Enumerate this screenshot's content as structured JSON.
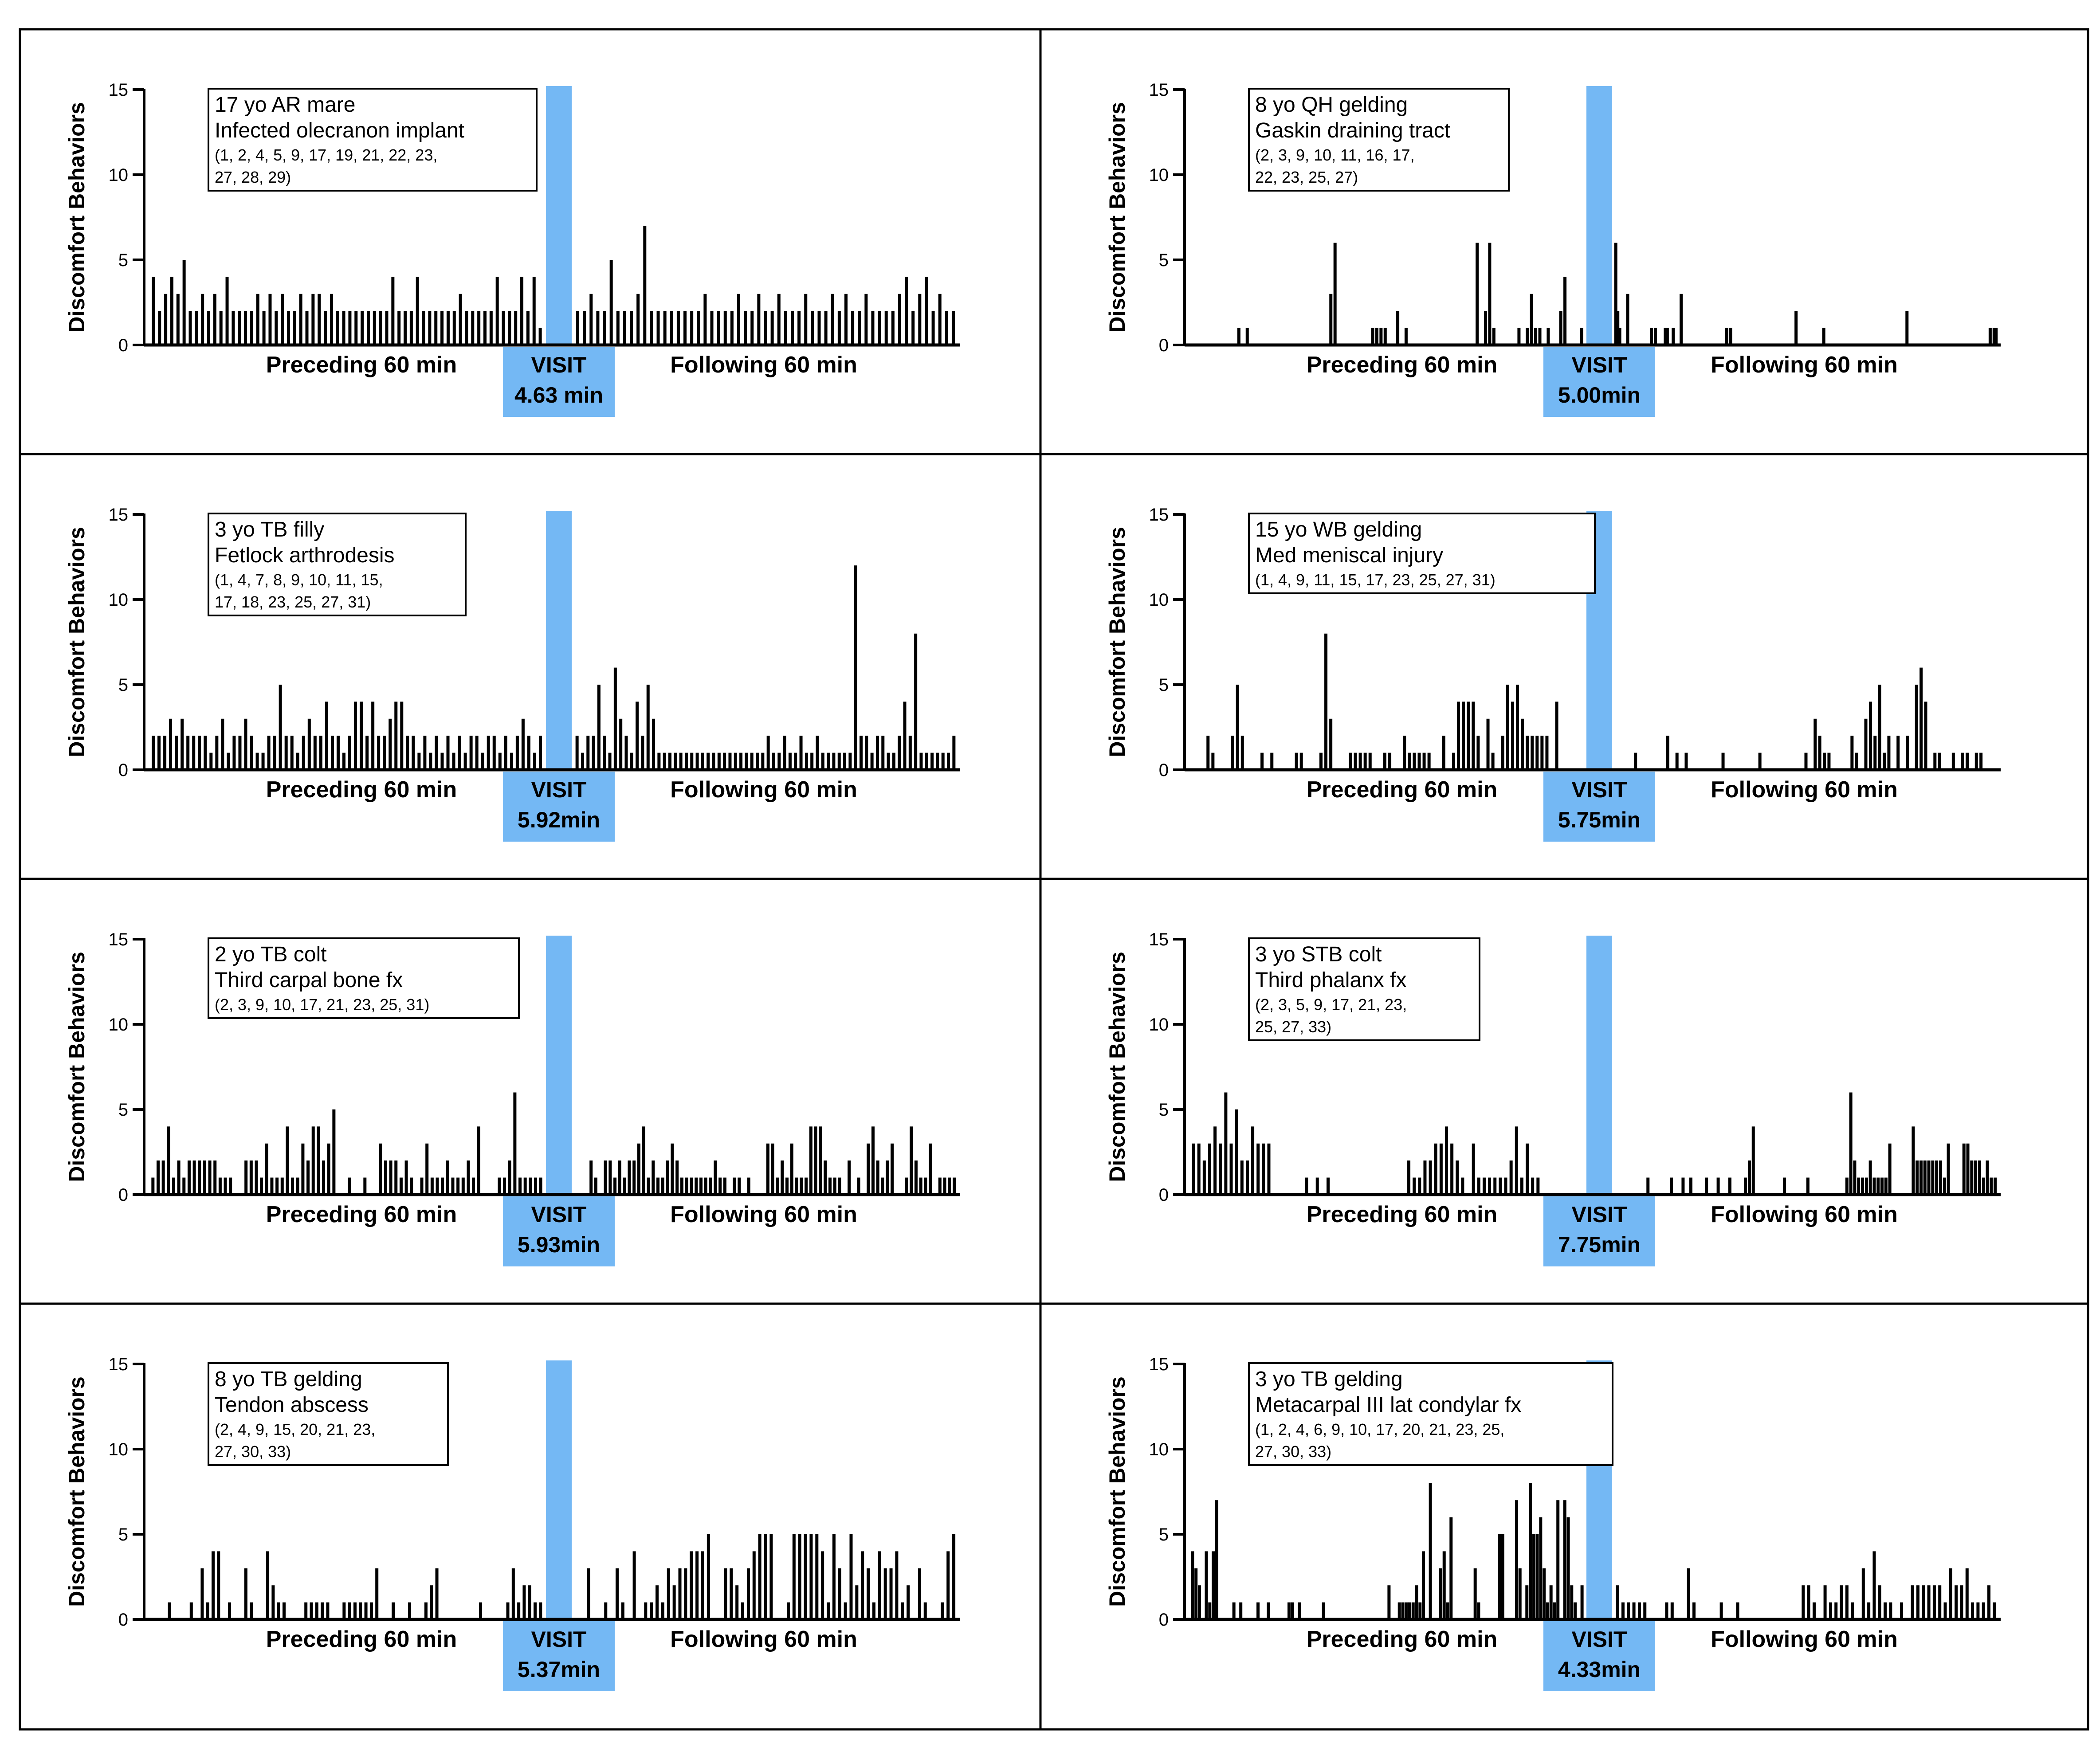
{
  "figure": {
    "y_axis_label": "Discomfort Behaviors",
    "pre_label": "Preceding 60 min",
    "post_label": "Following 60 min",
    "visit_label": "VISIT",
    "accent_color": "#74b8f4",
    "bar_color": "#000000"
  },
  "chart_data": [
    {
      "type": "bar",
      "title": "17 yo AR mare",
      "subtitle": "Infected olecranon implant",
      "codes": [
        "(1, 2, 4, 5, 9, 17, 19, 21, 22, 23,",
        "27, 28, 29)"
      ],
      "visit_duration": "4.63 min",
      "ylabel": "Discomfort Behaviors",
      "ylim": [
        0,
        15
      ],
      "yticks": [
        0,
        5,
        10,
        15
      ],
      "pre_values": [
        4,
        2,
        3,
        4,
        3,
        5,
        2,
        2,
        3,
        2,
        3,
        2,
        4,
        2,
        2,
        2,
        2,
        3,
        2,
        3,
        2,
        3,
        2,
        2,
        3,
        2,
        3,
        3,
        2,
        3,
        2,
        2,
        2,
        2,
        2,
        2,
        2,
        2,
        2,
        4,
        2,
        2,
        2,
        4,
        2,
        2,
        2,
        2,
        2,
        2,
        3,
        2,
        2,
        2,
        2,
        2,
        4,
        2,
        2,
        2,
        4,
        2,
        4,
        1
      ],
      "post_values": [
        2,
        2,
        3,
        2,
        2,
        5,
        2,
        2,
        2,
        3,
        7,
        2,
        2,
        2,
        2,
        2,
        2,
        2,
        2,
        3,
        2,
        2,
        2,
        2,
        3,
        2,
        2,
        3,
        2,
        2,
        3,
        2,
        2,
        2,
        3,
        2,
        2,
        2,
        3,
        2,
        3,
        2,
        2,
        3,
        2,
        2,
        2,
        2,
        3,
        4,
        2,
        3,
        4,
        2,
        3,
        2,
        2
      ]
    },
    {
      "type": "bar",
      "title": "8 yo QH gelding",
      "subtitle": "Gaskin draining tract",
      "codes": [
        "(2, 3, 9, 10, 11, 16, 17,",
        "22, 23, 25, 27)"
      ],
      "visit_duration": "5.00min",
      "ylabel": "Discomfort Behaviors",
      "ylim": [
        0,
        15
      ],
      "yticks": [
        0,
        5,
        10,
        15
      ],
      "pre_values": [
        0,
        0,
        0,
        0,
        0,
        0,
        0,
        0,
        0,
        0,
        0,
        1,
        0,
        1,
        0,
        0,
        0,
        0,
        0,
        0,
        0,
        0,
        0,
        0,
        0,
        0,
        0,
        0,
        0,
        0,
        0,
        0,
        0,
        3,
        6,
        0,
        0,
        0,
        0,
        0,
        0,
        0,
        0,
        1,
        1,
        1,
        1,
        0,
        0,
        2,
        0,
        1,
        0,
        0,
        0,
        0,
        0,
        0,
        0,
        0,
        0,
        0,
        0,
        0,
        0,
        0,
        0,
        0,
        6,
        0,
        2,
        6,
        1,
        0,
        0,
        0,
        0,
        0,
        1,
        0,
        1,
        3,
        1,
        1,
        0,
        1,
        0,
        0,
        2,
        4,
        0,
        0,
        0,
        1
      ],
      "post_values": [
        6,
        2,
        1,
        0,
        0,
        0,
        3,
        0,
        0,
        0,
        0,
        0,
        0,
        0,
        0,
        0,
        0,
        0,
        1,
        0,
        1,
        0,
        0,
        0,
        0,
        1,
        1,
        0,
        0,
        1,
        0,
        0,
        0,
        3,
        0,
        0,
        0,
        0,
        0,
        0,
        0,
        0,
        0,
        0,
        0,
        0,
        0,
        0,
        0,
        0,
        0,
        0,
        0,
        0,
        0,
        0,
        1,
        0,
        1,
        0,
        0,
        0,
        0,
        0,
        0,
        0,
        0,
        0,
        0,
        0,
        0,
        0,
        0,
        0,
        0,
        0,
        0,
        0,
        0,
        0,
        0,
        0,
        0,
        0,
        0,
        0,
        0,
        0,
        0,
        0,
        0,
        2,
        0,
        0,
        0,
        0,
        0,
        0,
        0,
        0,
        0,
        0,
        0,
        0,
        0,
        1,
        0,
        0,
        0,
        0,
        0,
        0,
        0,
        0,
        0,
        0,
        0,
        0,
        0,
        0,
        0,
        0,
        0,
        0,
        0,
        0,
        0,
        0,
        0,
        0,
        0,
        0,
        0,
        0,
        0,
        0,
        0,
        0,
        0,
        0,
        0,
        0,
        0,
        0,
        0,
        0,
        0,
        2,
        0,
        0,
        0,
        0,
        0,
        0,
        0,
        0,
        0,
        0,
        0,
        0,
        0,
        0,
        0,
        0,
        0,
        0,
        0,
        0,
        0,
        0,
        0,
        0,
        0,
        0,
        0,
        0,
        0,
        0,
        0,
        0,
        0,
        0,
        0,
        0,
        0,
        0,
        0,
        0,
        0,
        1,
        0,
        1,
        1
      ]
    },
    {
      "type": "bar",
      "title": "3 yo TB filly",
      "subtitle": "Fetlock arthrodesis",
      "codes": [
        "(1, 4, 7, 8, 9, 10, 11, 15,",
        "17, 18, 23, 25, 27, 31)"
      ],
      "visit_duration": "5.92min",
      "ylabel": "Discomfort Behaviors",
      "ylim": [
        0,
        15
      ],
      "yticks": [
        0,
        5,
        10,
        15
      ],
      "pre_values": [
        2,
        2,
        2,
        3,
        2,
        3,
        2,
        2,
        2,
        2,
        1,
        2,
        3,
        1,
        2,
        2,
        3,
        2,
        1,
        1,
        2,
        2,
        5,
        2,
        2,
        1,
        2,
        3,
        2,
        2,
        4,
        2,
        2,
        1,
        2,
        4,
        4,
        2,
        4,
        2,
        2,
        3,
        4,
        4,
        2,
        2,
        1,
        2,
        1,
        2,
        1,
        2,
        1,
        2,
        1,
        2,
        2,
        1,
        2,
        2,
        1,
        2,
        1,
        2,
        3,
        2,
        1,
        2
      ],
      "post_values": [
        2,
        1,
        2,
        2,
        5,
        2,
        1,
        6,
        3,
        2,
        1,
        4,
        2,
        5,
        3,
        1,
        1,
        1,
        1,
        1,
        1,
        1,
        1,
        1,
        1,
        1,
        1,
        1,
        1,
        1,
        1,
        1,
        1,
        1,
        1,
        2,
        1,
        1,
        2,
        1,
        1,
        2,
        1,
        1,
        2,
        1,
        1,
        1,
        1,
        1,
        1,
        12,
        2,
        2,
        1,
        2,
        2,
        1,
        1,
        2,
        4,
        2,
        8,
        1,
        1,
        1,
        1,
        1,
        1,
        2
      ]
    },
    {
      "type": "bar",
      "title": "15 yo WB gelding",
      "subtitle": "Med meniscal injury",
      "codes": [
        "(1, 4, 9, 11, 15, 17, 23, 25, 27, 31)"
      ],
      "visit_duration": "5.75min",
      "ylabel": "Discomfort Behaviors",
      "ylim": [
        0,
        15
      ],
      "yticks": [
        0,
        5,
        10,
        15
      ],
      "pre_values": [
        0,
        0,
        0,
        2,
        1,
        0,
        0,
        0,
        2,
        5,
        2,
        0,
        0,
        0,
        1,
        0,
        1,
        0,
        0,
        0,
        0,
        1,
        1,
        0,
        0,
        0,
        1,
        8,
        3,
        0,
        0,
        0,
        1,
        1,
        1,
        1,
        1,
        0,
        0,
        1,
        1,
        0,
        0,
        2,
        1,
        1,
        1,
        1,
        1,
        0,
        0,
        2,
        0,
        1,
        4,
        4,
        4,
        4,
        2,
        0,
        3,
        1,
        0,
        2,
        5,
        4,
        5,
        3,
        2,
        2,
        2,
        2,
        2,
        0,
        4,
        0,
        0,
        0,
        0,
        0
      ],
      "post_values": [
        0,
        0,
        0,
        0,
        1,
        0,
        0,
        0,
        0,
        0,
        0,
        2,
        0,
        1,
        0,
        1,
        0,
        0,
        0,
        0,
        0,
        0,
        0,
        1,
        0,
        0,
        0,
        0,
        0,
        0,
        0,
        1,
        0,
        0,
        0,
        0,
        0,
        0,
        0,
        0,
        0,
        1,
        0,
        3,
        2,
        1,
        1,
        0,
        0,
        0,
        0,
        2,
        1,
        0,
        3,
        4,
        2,
        5,
        1,
        2,
        0,
        2,
        0,
        2,
        0,
        5,
        6,
        4,
        0,
        1,
        1,
        0,
        0,
        1,
        0,
        1,
        1,
        0,
        1,
        1,
        0,
        0,
        0
      ]
    },
    {
      "type": "bar",
      "title": "2 yo TB colt",
      "subtitle": "Third carpal bone fx",
      "codes": [
        "(2, 3, 9, 10, 17, 21, 23, 25, 31)"
      ],
      "visit_duration": "5.93min",
      "ylabel": "Discomfort Behaviors",
      "ylim": [
        0,
        15
      ],
      "yticks": [
        0,
        5,
        10,
        15
      ],
      "pre_values": [
        1,
        2,
        2,
        4,
        1,
        2,
        1,
        2,
        2,
        2,
        2,
        2,
        2,
        1,
        1,
        1,
        0,
        0,
        2,
        2,
        2,
        1,
        3,
        1,
        1,
        1,
        4,
        1,
        1,
        3,
        2,
        4,
        4,
        2,
        3,
        5,
        0,
        0,
        1,
        0,
        0,
        1,
        0,
        0,
        3,
        2,
        2,
        2,
        1,
        2,
        1,
        0,
        1,
        3,
        1,
        1,
        1,
        2,
        1,
        1,
        1,
        2,
        1,
        4,
        0,
        0,
        0,
        1,
        1,
        2,
        6,
        1,
        1,
        1,
        1,
        1
      ],
      "post_values": [
        0,
        0,
        0,
        2,
        1,
        0,
        2,
        2,
        1,
        2,
        1,
        2,
        2,
        3,
        4,
        1,
        2,
        1,
        1,
        2,
        3,
        2,
        1,
        1,
        1,
        1,
        1,
        1,
        1,
        2,
        1,
        1,
        0,
        1,
        1,
        0,
        1,
        0,
        0,
        0,
        3,
        3,
        1,
        2,
        1,
        3,
        1,
        1,
        1,
        4,
        4,
        4,
        2,
        1,
        1,
        1,
        0,
        2,
        0,
        1,
        0,
        3,
        4,
        2,
        1,
        2,
        3,
        0,
        0,
        1,
        4,
        2,
        1,
        1,
        3,
        0,
        1,
        1,
        1,
        1
      ]
    },
    {
      "type": "bar",
      "title": "3 yo STB colt",
      "subtitle": "Third phalanx fx",
      "codes": [
        "(2, 3, 5, 9, 17, 21, 23,",
        "25, 27, 33)"
      ],
      "visit_duration": "7.75min",
      "ylabel": "Discomfort Behaviors",
      "ylim": [
        0,
        15
      ],
      "yticks": [
        0,
        5,
        10,
        15
      ],
      "pre_values": [
        3,
        3,
        2,
        3,
        4,
        3,
        6,
        3,
        5,
        2,
        2,
        4,
        3,
        3,
        3,
        0,
        0,
        0,
        0,
        0,
        0,
        1,
        0,
        1,
        0,
        1,
        0,
        0,
        0,
        0,
        0,
        0,
        0,
        0,
        0,
        0,
        0,
        0,
        0,
        0,
        2,
        1,
        1,
        2,
        2,
        3,
        3,
        4,
        3,
        2,
        1,
        0,
        3,
        1,
        1,
        1,
        1,
        1,
        1,
        2,
        4,
        1,
        3,
        1,
        1,
        0,
        0,
        0,
        0,
        0,
        0,
        0,
        0
      ],
      "post_values": [
        0,
        0,
        0,
        0,
        0,
        0,
        0,
        0,
        1,
        0,
        0,
        0,
        0,
        0,
        1,
        0,
        0,
        1,
        0,
        1,
        0,
        0,
        0,
        1,
        0,
        0,
        1,
        0,
        0,
        1,
        0,
        0,
        0,
        1,
        2,
        4,
        0,
        0,
        0,
        0,
        0,
        0,
        0,
        1,
        0,
        0,
        0,
        0,
        0,
        1,
        0,
        0,
        0,
        0,
        0,
        0,
        0,
        0,
        0,
        1,
        6,
        2,
        1,
        1,
        1,
        2,
        1,
        1,
        1,
        1,
        3,
        0,
        0,
        0,
        0,
        0,
        4,
        2,
        2,
        2,
        2,
        2,
        2,
        2,
        1,
        3,
        0,
        0,
        0,
        3,
        3,
        2,
        2,
        2,
        1,
        2,
        1,
        1
      ],
      "extra_note": ""
    },
    {
      "type": "bar",
      "title": "8 yo TB gelding",
      "subtitle": "Tendon abscess",
      "codes": [
        "(2, 4, 9, 15, 20, 21, 23,",
        "27, 30, 33)"
      ],
      "visit_duration": "5.37min",
      "ylabel": "Discomfort Behaviors",
      "ylim": [
        0,
        15
      ],
      "yticks": [
        0,
        5,
        10,
        15
      ],
      "pre_values": [
        0,
        0,
        0,
        1,
        0,
        0,
        0,
        1,
        0,
        3,
        1,
        4,
        4,
        0,
        1,
        0,
        0,
        3,
        1,
        0,
        0,
        4,
        2,
        1,
        1,
        0,
        0,
        0,
        1,
        1,
        1,
        1,
        1,
        0,
        0,
        1,
        1,
        1,
        1,
        1,
        1,
        3,
        0,
        0,
        1,
        0,
        0,
        1,
        0,
        0,
        1,
        2,
        3,
        0,
        0,
        0,
        0,
        0,
        0,
        0,
        1,
        0,
        0,
        0,
        0,
        1,
        3,
        1,
        2,
        2,
        1,
        1
      ],
      "post_values": [
        0,
        0,
        3,
        0,
        0,
        1,
        0,
        3,
        1,
        0,
        4,
        0,
        1,
        1,
        2,
        1,
        3,
        2,
        3,
        3,
        4,
        4,
        4,
        5,
        0,
        0,
        3,
        3,
        2,
        1,
        3,
        4,
        5,
        5,
        5,
        0,
        0,
        1,
        5,
        5,
        5,
        5,
        5,
        4,
        1,
        5,
        3,
        1,
        5,
        2,
        4,
        3,
        1,
        4,
        3,
        3,
        4,
        1,
        2,
        0,
        3,
        1,
        0,
        0,
        1,
        4,
        5
      ]
    },
    {
      "type": "bar",
      "title": "3 yo TB gelding",
      "subtitle": "Metacarpal III lat condylar fx",
      "codes": [
        "(1, 2, 4, 6, 9, 10, 17, 20, 21, 23, 25,",
        "27, 30, 33)"
      ],
      "visit_duration": "4.33min",
      "ylabel": "Discomfort Behaviors",
      "ylim": [
        0,
        15
      ],
      "yticks": [
        0,
        5,
        10,
        15
      ],
      "pre_values": [
        4,
        3,
        2,
        0,
        4,
        1,
        4,
        7,
        0,
        0,
        0,
        0,
        1,
        0,
        1,
        0,
        0,
        0,
        0,
        1,
        0,
        0,
        1,
        0,
        0,
        0,
        0,
        0,
        1,
        1,
        0,
        1,
        0,
        0,
        0,
        0,
        0,
        0,
        1,
        0,
        0,
        0,
        0,
        0,
        0,
        0,
        0,
        0,
        0,
        0,
        0,
        0,
        0,
        0,
        0,
        0,
        0,
        2,
        0,
        0,
        1,
        1,
        1,
        1,
        1,
        2,
        1,
        4,
        0,
        8,
        0,
        0,
        3,
        4,
        1,
        6,
        0,
        0,
        0,
        0,
        0,
        0,
        3,
        1,
        0,
        0,
        0,
        0,
        0,
        5,
        5,
        0,
        0,
        0,
        7,
        3,
        0,
        2,
        8,
        5,
        5,
        6,
        3,
        1,
        2,
        1,
        7,
        0,
        7,
        6,
        2,
        1,
        0,
        2
      ],
      "post_values": [
        2,
        1,
        1,
        1,
        1,
        1,
        0,
        0,
        0,
        1,
        1,
        0,
        0,
        3,
        1,
        0,
        0,
        0,
        0,
        1,
        0,
        0,
        1,
        0,
        0,
        0,
        0,
        0,
        0,
        0,
        0,
        0,
        0,
        0,
        2,
        2,
        1,
        0,
        2,
        1,
        1,
        2,
        2,
        1,
        0,
        3,
        1,
        4,
        2,
        1,
        1,
        0,
        1,
        0,
        2,
        2,
        2,
        2,
        2,
        2,
        1,
        3,
        2,
        2,
        3,
        1,
        1,
        1,
        2,
        1
      ]
    }
  ]
}
